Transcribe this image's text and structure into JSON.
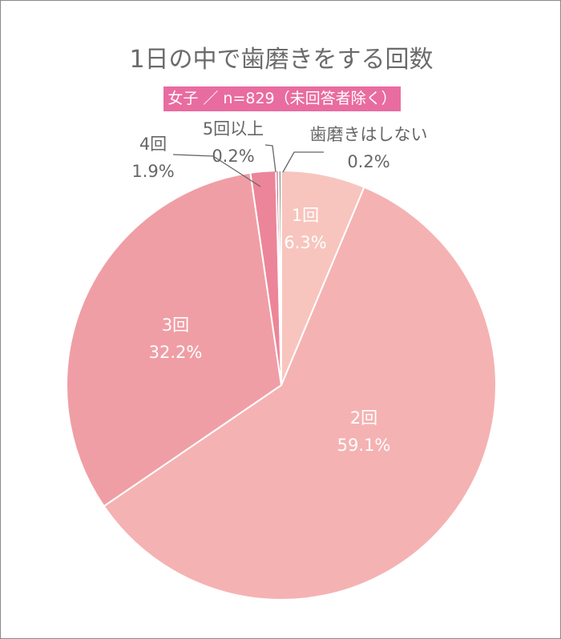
{
  "chart_data": {
    "type": "pie",
    "title": "1日の中で歯磨きをする回数",
    "subtitle": "女子 ／ n=829（未回答者除く）",
    "start": "top",
    "direction": "clockwise",
    "slices": [
      {
        "label": "1回",
        "value": 6.3,
        "display": "6.3%",
        "color": "#f7c5bd"
      },
      {
        "label": "2回",
        "value": 59.1,
        "display": "59.1%",
        "color": "#f5b2b2"
      },
      {
        "label": "3回",
        "value": 32.2,
        "display": "32.2%",
        "color": "#f09ea5"
      },
      {
        "label": "4回",
        "value": 1.9,
        "display": "1.9%",
        "color": "#ec8599"
      },
      {
        "label": "5回以上",
        "value": 0.2,
        "display": "0.2%",
        "color": "#d9607a"
      },
      {
        "label": "歯磨きはしない",
        "value": 0.2,
        "display": "0.2%",
        "color": "#8c8c8c"
      }
    ]
  }
}
